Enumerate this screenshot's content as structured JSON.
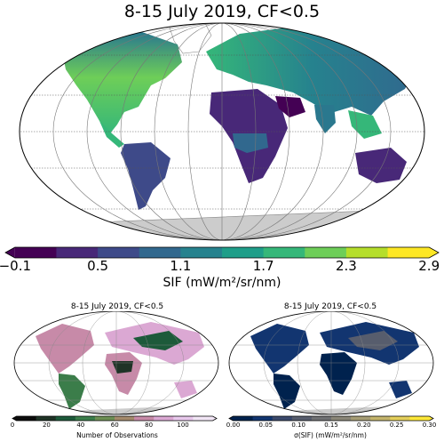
{
  "main_map": {
    "title": "8-15 July 2019, CF<0.5",
    "colorbar": {
      "ticks": [
        "−0.1",
        "0.5",
        "1.1",
        "1.7",
        "2.3",
        "2.9"
      ],
      "label": "SIF (mW/m²/sr/nm)",
      "colors": [
        "#440154",
        "#482878",
        "#3e4a89",
        "#31688e",
        "#26828e",
        "#1f9e89",
        "#35b779",
        "#6ece58",
        "#b5de2b",
        "#fde725"
      ]
    }
  },
  "obs_map": {
    "title": "8-15 July 2019, CF<0.5",
    "colorbar": {
      "ticks": [
        "0",
        "20",
        "40",
        "60",
        "80",
        "100"
      ],
      "label": "Number of Observations",
      "colors": [
        "#0c0c0c",
        "#1f3326",
        "#1d5a3a",
        "#3b7d4a",
        "#6d8f54",
        "#a48a6c",
        "#c78aa8",
        "#dba8d3",
        "#e8c8ec",
        "#f2e6f6"
      ]
    }
  },
  "sigma_map": {
    "title": "8-15 July 2019, CF<0.5",
    "colorbar": {
      "ticks": [
        "0.00",
        "0.05",
        "0.10",
        "0.15",
        "0.20",
        "0.25",
        "0.30"
      ],
      "label": "σ(SIF) (mW/m²/sr/nm)",
      "colors": [
        "#00224e",
        "#123570",
        "#3b496c",
        "#575d6d",
        "#707173",
        "#8a8678",
        "#a69d75",
        "#c4b56c",
        "#e4cf5b",
        "#fee838"
      ]
    }
  },
  "map_style": {
    "ocean": "#ffffff",
    "antarctica": "#cccccc",
    "graticule": "#555555"
  }
}
